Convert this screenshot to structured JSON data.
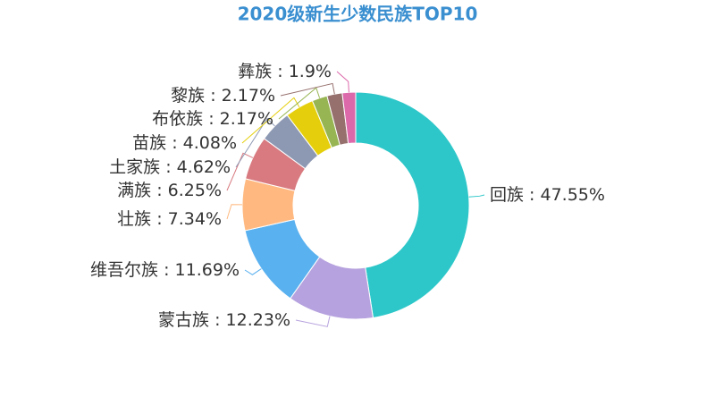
{
  "chart_data": {
    "type": "pie",
    "title": "2020级新生少数民族TOP10",
    "categories": [
      "回族",
      "蒙古族",
      "维吾尔族",
      "壮族",
      "满族",
      "土家族",
      "苗族",
      "布依族",
      "黎族",
      "彝族"
    ],
    "values": [
      47.55,
      12.23,
      11.69,
      7.34,
      6.25,
      4.62,
      4.08,
      2.17,
      2.17,
      1.9
    ],
    "value_labels": [
      "47.55%",
      "12.23%",
      "11.69%",
      "7.34%",
      "6.25%",
      "4.62%",
      "4.08%",
      "2.17%",
      "2.17%",
      "1.9%"
    ],
    "label_separator": " : ",
    "colors": [
      "#2ec7c9",
      "#b6a2de",
      "#5ab1ef",
      "#ffb980",
      "#d87a80",
      "#8d98b3",
      "#e5cf0d",
      "#97b552",
      "#95706d",
      "#dc69aa"
    ]
  }
}
